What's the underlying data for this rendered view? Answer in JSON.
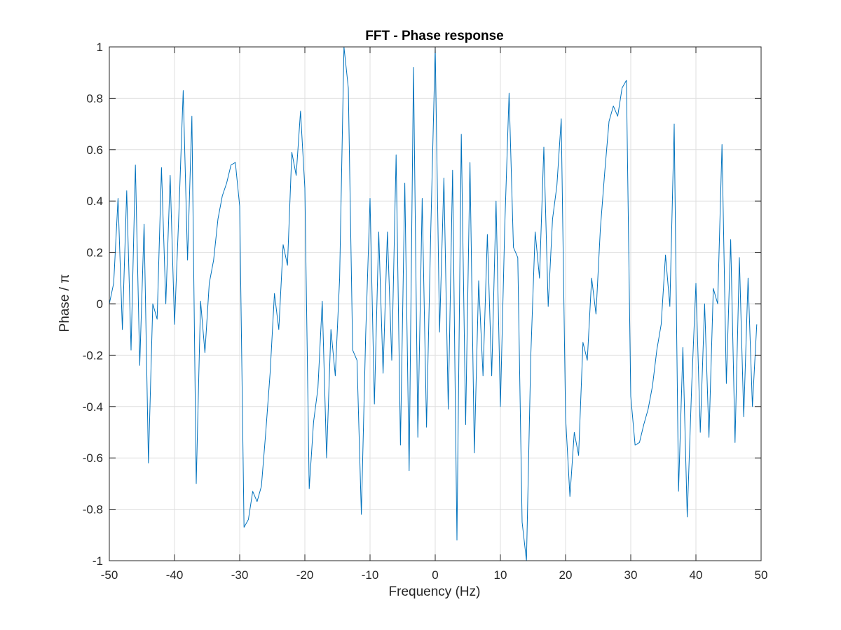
{
  "chart_data": {
    "type": "line",
    "title": "FFT - Phase response",
    "xlabel": "Frequency (Hz)",
    "ylabel": "Phase / π",
    "xlim": [
      -50,
      50
    ],
    "ylim": [
      -1,
      1
    ],
    "grid": true,
    "xticks": [
      -50,
      -40,
      -30,
      -20,
      -10,
      0,
      10,
      20,
      30,
      40,
      50
    ],
    "xtick_labels": [
      "-50",
      "-40",
      "-30",
      "-20",
      "-10",
      "0",
      "10",
      "20",
      "30",
      "40",
      "50"
    ],
    "yticks": [
      -1,
      -0.8,
      -0.6,
      -0.4,
      -0.2,
      0,
      0.2,
      0.4,
      0.6,
      0.8,
      1
    ],
    "ytick_labels": [
      "-1",
      "-0.8",
      "-0.6",
      "-0.4",
      "-0.2",
      "0",
      "0.2",
      "0.4",
      "0.6",
      "0.8",
      "1"
    ],
    "series": [
      {
        "color": "#0072bd",
        "x": [
          -50,
          -49.33,
          -48.67,
          -48.0,
          -47.33,
          -46.67,
          -46.0,
          -45.33,
          -44.67,
          -44.0,
          -43.33,
          -42.67,
          -42.0,
          -41.33,
          -40.67,
          -40.0,
          -39.33,
          -38.67,
          -38.0,
          -37.33,
          -36.67,
          -36.0,
          -35.33,
          -34.67,
          -34.0,
          -33.33,
          -32.67,
          -32.0,
          -31.33,
          -30.67,
          -30.0,
          -29.33,
          -28.67,
          -28.0,
          -27.33,
          -26.67,
          -26.0,
          -25.33,
          -24.67,
          -24.0,
          -23.33,
          -22.67,
          -22.0,
          -21.33,
          -20.67,
          -20.0,
          -19.33,
          -18.67,
          -18.0,
          -17.33,
          -16.67,
          -16.0,
          -15.33,
          -14.67,
          -14.0,
          -13.33,
          -12.67,
          -12.0,
          -11.33,
          -10.67,
          -10.0,
          -9.33,
          -8.67,
          -8.0,
          -7.33,
          -6.67,
          -6.0,
          -5.33,
          -4.67,
          -4.0,
          -3.33,
          -2.67,
          -2.0,
          -1.33,
          -0.67,
          0.0,
          0.67,
          1.33,
          2.0,
          2.67,
          3.33,
          4.0,
          4.67,
          5.33,
          6.0,
          6.67,
          7.33,
          8.0,
          8.67,
          9.33,
          10.0,
          10.67,
          11.33,
          12.0,
          12.67,
          13.33,
          14.0,
          14.67,
          15.33,
          16.0,
          16.67,
          17.33,
          18.0,
          18.67,
          19.33,
          20.0,
          20.67,
          21.33,
          22.0,
          22.67,
          23.33,
          24.0,
          24.67,
          25.33,
          26.0,
          26.67,
          27.33,
          28.0,
          28.67,
          29.33,
          30.0,
          30.67,
          31.33,
          32.0,
          32.67,
          33.33,
          34.0,
          34.67,
          35.33,
          36.0,
          36.67,
          37.33,
          38.0,
          38.67,
          39.33,
          40.0,
          40.67,
          41.33,
          42.0,
          42.67,
          43.33,
          44.0,
          44.67,
          45.33,
          46.0,
          46.67,
          47.33,
          48.0,
          48.67,
          49.33
        ],
        "y": [
          0.0,
          0.08,
          0.41,
          -0.1,
          0.44,
          -0.18,
          0.54,
          -0.24,
          0.31,
          -0.62,
          0.0,
          -0.06,
          0.53,
          0.0,
          0.5,
          -0.08,
          0.35,
          0.83,
          0.17,
          0.73,
          -0.7,
          0.01,
          -0.19,
          0.08,
          0.17,
          0.33,
          0.42,
          0.47,
          0.54,
          0.55,
          0.38,
          -0.87,
          -0.84,
          -0.73,
          -0.77,
          -0.71,
          -0.5,
          -0.27,
          0.04,
          -0.1,
          0.23,
          0.15,
          0.59,
          0.5,
          0.75,
          0.45,
          -0.72,
          -0.46,
          -0.33,
          0.01,
          -0.6,
          -0.1,
          -0.28,
          0.1,
          1.0,
          0.84,
          -0.18,
          -0.22,
          -0.82,
          -0.12,
          0.41,
          -0.39,
          0.28,
          -0.27,
          0.28,
          -0.22,
          0.58,
          -0.55,
          0.47,
          -0.65,
          0.92,
          -0.52,
          0.41,
          -0.48,
          0.3,
          1.0,
          -0.11,
          0.49,
          -0.41,
          0.52,
          -0.92,
          0.66,
          -0.47,
          0.55,
          -0.58,
          0.09,
          -0.28,
          0.27,
          -0.28,
          0.4,
          -0.4,
          0.3,
          0.82,
          0.22,
          0.18,
          -0.85,
          -1.0,
          -0.2,
          0.28,
          0.1,
          0.61,
          -0.01,
          0.33,
          0.46,
          0.72,
          -0.44,
          -0.75,
          -0.5,
          -0.59,
          -0.15,
          -0.22,
          0.1,
          -0.04,
          0.29,
          0.51,
          0.71,
          0.77,
          0.73,
          0.84,
          0.87,
          -0.36,
          -0.55,
          -0.54,
          -0.47,
          -0.41,
          -0.32,
          -0.18,
          -0.08,
          0.19,
          -0.01,
          0.7,
          -0.73,
          -0.17,
          -0.83,
          -0.33,
          0.08,
          -0.5,
          0.0,
          -0.52,
          0.06,
          0.0,
          0.62,
          -0.31,
          0.25,
          -0.54,
          0.18,
          -0.44,
          0.1,
          -0.4,
          -0.08
        ]
      }
    ]
  }
}
